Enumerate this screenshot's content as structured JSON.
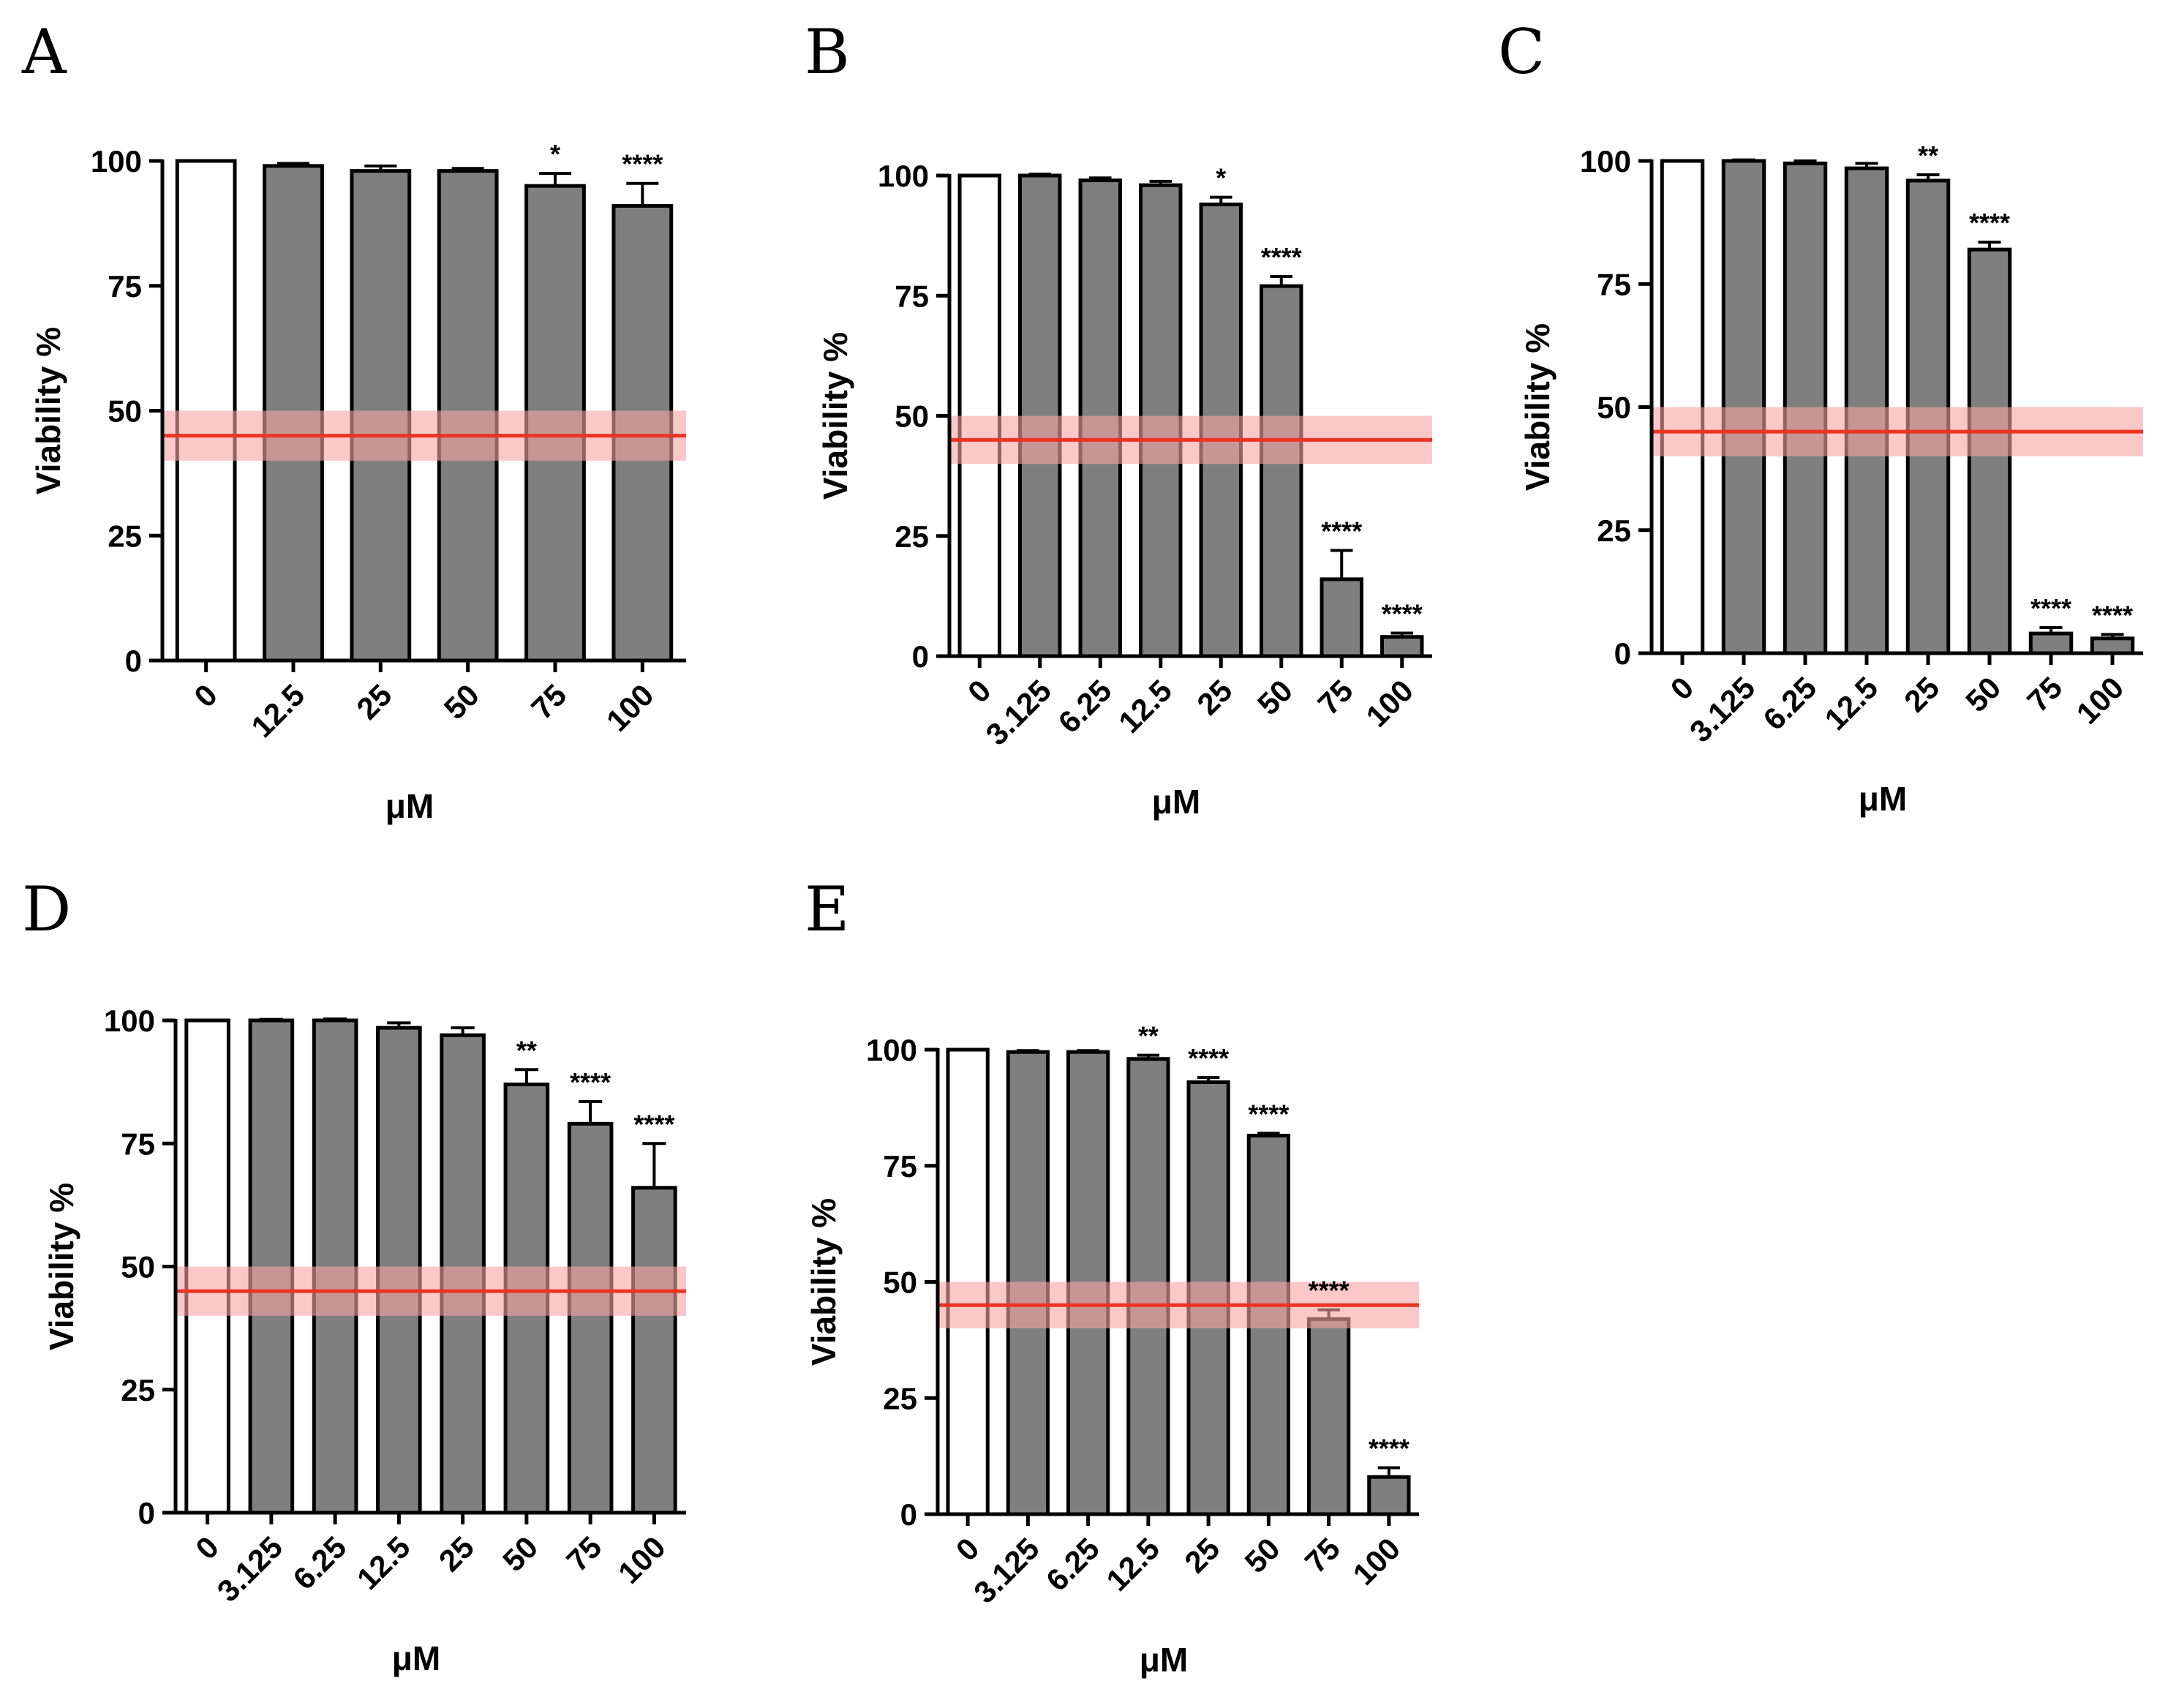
{
  "colors": {
    "control_bar": "#ffffff",
    "treated_bar": "#7f7f7f",
    "outline": "#000000",
    "ic50_line": "#ee3322",
    "ic50_band": "#f7a4a4"
  },
  "chart_data": [
    {
      "panel": "A",
      "type": "bar",
      "categories": [
        "0",
        "12.5",
        "25",
        "50",
        "75",
        "100"
      ],
      "values": [
        100,
        99,
        98,
        98,
        95,
        91
      ],
      "errors": [
        0,
        0.5,
        1,
        0.5,
        2.5,
        4.5
      ],
      "significance": [
        "",
        "",
        "",
        "",
        "*",
        "****"
      ],
      "xlabel": "μM",
      "ylabel": "Viability %",
      "ylim": [
        0,
        100
      ],
      "yticks": [
        0,
        25,
        50,
        75,
        100
      ],
      "ytick_labels": [
        "0",
        "25",
        "50",
        "75",
        "100"
      ],
      "reference_line": 45,
      "reference_band": [
        40,
        50
      ]
    },
    {
      "panel": "B",
      "type": "bar",
      "categories": [
        "0",
        "3.125",
        "6.25",
        "12.5",
        "25",
        "50",
        "75",
        "100"
      ],
      "values": [
        100,
        100,
        99,
        98,
        94,
        77,
        16,
        4
      ],
      "errors": [
        0,
        0.3,
        0.5,
        0.8,
        1.5,
        2,
        6,
        0.8
      ],
      "significance": [
        "",
        "",
        "",
        "",
        "*",
        "****",
        "****",
        "****"
      ],
      "xlabel": "μM",
      "ylabel": "Viability %",
      "ylim": [
        0,
        100
      ],
      "yticks": [
        0,
        25,
        50,
        75,
        100
      ],
      "ytick_labels": [
        "0",
        "25",
        "50",
        "75",
        "100"
      ],
      "reference_line": 45,
      "reference_band": [
        40,
        50
      ]
    },
    {
      "panel": "C",
      "type": "bar",
      "categories": [
        "0",
        "3.125",
        "6.25",
        "12.5",
        "25",
        "50",
        "75",
        "100"
      ],
      "values": [
        100,
        100,
        99.5,
        98.5,
        96,
        82,
        4,
        3
      ],
      "errors": [
        0,
        0.2,
        0.5,
        1,
        1.2,
        1.5,
        1.2,
        0.8
      ],
      "significance": [
        "",
        "",
        "",
        "",
        "**",
        "****",
        "****",
        "****"
      ],
      "xlabel": "μM",
      "ylabel": "Viability %",
      "ylim": [
        0,
        100
      ],
      "yticks": [
        0,
        25,
        50,
        75,
        100
      ],
      "ytick_labels": [
        "0",
        "25",
        "50",
        "75",
        "100"
      ],
      "reference_line": 45,
      "reference_band": [
        40,
        50
      ]
    },
    {
      "panel": "D",
      "type": "bar",
      "categories": [
        "0",
        "3.125",
        "6.25",
        "12.5",
        "25",
        "50",
        "75",
        "100"
      ],
      "values": [
        100,
        100,
        100,
        98.5,
        97,
        87,
        79,
        66
      ],
      "errors": [
        0,
        0.2,
        0.3,
        1,
        1.5,
        3,
        4.5,
        9
      ],
      "significance": [
        "",
        "",
        "",
        "",
        "",
        "**",
        "****",
        "****"
      ],
      "xlabel": "μM",
      "ylabel": "Viability %",
      "ylim": [
        0,
        100
      ],
      "yticks": [
        0,
        25,
        50,
        75,
        100
      ],
      "ytick_labels": [
        "0",
        "25",
        "50",
        "75",
        "100"
      ],
      "reference_line": 45,
      "reference_band": [
        40,
        50
      ]
    },
    {
      "panel": "E",
      "type": "bar",
      "categories": [
        "0",
        "3.125",
        "6.25",
        "12.5",
        "25",
        "50",
        "75",
        "100"
      ],
      "values": [
        100,
        99.5,
        99.5,
        98,
        93,
        81.5,
        42,
        8
      ],
      "errors": [
        0,
        0.3,
        0.3,
        0.8,
        1,
        0.5,
        2,
        2
      ],
      "significance": [
        "",
        "",
        "",
        "**",
        "****",
        "****",
        "****",
        "****"
      ],
      "xlabel": "μM",
      "ylabel": "Viability %",
      "ylim": [
        0,
        100
      ],
      "yticks": [
        0,
        25,
        50,
        75,
        100
      ],
      "ytick_labels": [
        "0",
        "25",
        "50",
        "75",
        "100"
      ],
      "reference_line": 45,
      "reference_band": [
        40,
        50
      ]
    }
  ]
}
